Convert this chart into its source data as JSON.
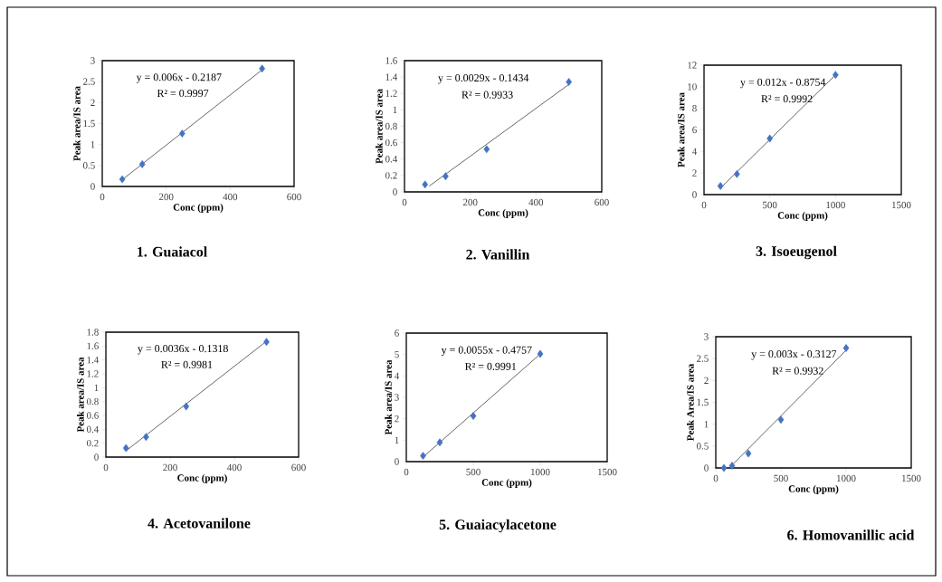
{
  "chart_data": [
    {
      "type": "scatter",
      "title": "1. Guaiacol",
      "xlabel": "Conc (ppm)",
      "ylabel": "Peak area/IS area",
      "annotations": [
        "y = 0.006x - 0.2187",
        "R² = 0.9997"
      ],
      "xlim": [
        0,
        600
      ],
      "xticks": [
        0,
        200,
        400,
        600
      ],
      "ylim": [
        0,
        3
      ],
      "yticks": [
        0,
        0.5,
        1,
        1.5,
        2,
        2.5,
        3
      ],
      "series": [
        {
          "color": "#4472c4",
          "marker": "diamond",
          "x": [
            62.5,
            125,
            250,
            500
          ],
          "values": [
            0.17,
            0.53,
            1.26,
            2.81
          ]
        },
        {
          "type": "line",
          "color": "#404040",
          "line_style": "solid",
          "x": [
            62.5,
            500
          ],
          "values": [
            0.16,
            2.78
          ]
        }
      ]
    },
    {
      "type": "scatter",
      "title": "2. Vanillin",
      "xlabel": "Conc (ppm)",
      "ylabel": "Peak area/IS area",
      "annotations": [
        "y = 0.0029x - 0.1434",
        "R² = 0.9933"
      ],
      "xlim": [
        0,
        600
      ],
      "xticks": [
        0,
        200,
        400,
        600
      ],
      "ylim": [
        0,
        1.6
      ],
      "yticks": [
        0,
        0.2,
        0.4,
        0.6,
        0.8,
        1,
        1.2,
        1.4,
        1.6
      ],
      "series": [
        {
          "color": "#4472c4",
          "marker": "diamond",
          "x": [
            62.5,
            125,
            250,
            500
          ],
          "values": [
            0.09,
            0.19,
            0.52,
            1.34
          ]
        },
        {
          "type": "line",
          "color": "#404040",
          "line_style": "solid",
          "x": [
            75,
            500
          ],
          "values": [
            0.07,
            1.31
          ]
        }
      ]
    },
    {
      "type": "scatter",
      "title": "3. Isoeugenol",
      "xlabel": "Conc (ppm)",
      "ylabel": "Peak area/IS area",
      "annotations": [
        "y = 0.012x - 0.8754",
        "R² = 0.9992"
      ],
      "xlim": [
        0,
        1500
      ],
      "xticks": [
        0,
        500,
        1000,
        1500
      ],
      "ylim": [
        0,
        12
      ],
      "yticks": [
        0,
        2,
        4,
        6,
        8,
        10,
        12
      ],
      "series": [
        {
          "color": "#4472c4",
          "marker": "diamond",
          "x": [
            125,
            250,
            500,
            1000
          ],
          "values": [
            0.8,
            1.9,
            5.2,
            11.1
          ]
        },
        {
          "type": "line",
          "color": "#404040",
          "line_style": "solid",
          "x": [
            125,
            1000
          ],
          "values": [
            0.6,
            11.1
          ]
        }
      ]
    },
    {
      "type": "scatter",
      "title": "4. Acetovanilone",
      "xlabel": "Conc (ppm)",
      "ylabel": "Peak area/IS area",
      "annotations": [
        "y = 0.0036x - 0.1318",
        "R² = 0.9981"
      ],
      "xlim": [
        0,
        600
      ],
      "xticks": [
        0,
        200,
        400,
        600
      ],
      "ylim": [
        0,
        1.8
      ],
      "yticks": [
        0,
        0.2,
        0.4,
        0.6,
        0.8,
        1,
        1.2,
        1.4,
        1.6,
        1.8
      ],
      "series": [
        {
          "color": "#4472c4",
          "marker": "diamond",
          "x": [
            62.5,
            125,
            250,
            500
          ],
          "values": [
            0.13,
            0.29,
            0.73,
            1.66
          ]
        },
        {
          "type": "line",
          "color": "#404040",
          "line_style": "solid",
          "x": [
            62.5,
            500
          ],
          "values": [
            0.09,
            1.67
          ]
        }
      ]
    },
    {
      "type": "scatter",
      "title": "5. Guaiacylacetone",
      "xlabel": "Conc (ppm)",
      "ylabel": "Peak area/IS area",
      "annotations": [
        "y = 0.0055x - 0.4757",
        "R² = 0.9991"
      ],
      "xlim": [
        0,
        1500
      ],
      "xticks": [
        0,
        500,
        1000,
        1500
      ],
      "ylim": [
        0,
        6
      ],
      "yticks": [
        0,
        1,
        2,
        3,
        4,
        5,
        6
      ],
      "series": [
        {
          "color": "#4472c4",
          "marker": "diamond",
          "x": [
            125,
            250,
            500,
            1000
          ],
          "values": [
            0.27,
            0.9,
            2.13,
            5.03
          ]
        },
        {
          "type": "line",
          "color": "#404040",
          "line_style": "solid",
          "x": [
            125,
            1000
          ],
          "values": [
            0.21,
            5.02
          ]
        }
      ]
    },
    {
      "type": "scatter",
      "title": "6. Homovanillic  acid",
      "xlabel": "Conc (ppm)",
      "ylabel": "Peak Area/IS area",
      "annotations": [
        "y = 0.003x - 0.3127",
        "R² = 0.9932"
      ],
      "xlim": [
        0,
        1500
      ],
      "xticks": [
        0,
        500,
        1000,
        1500
      ],
      "ylim": [
        0,
        3
      ],
      "yticks": [
        0,
        0.5,
        1,
        1.5,
        2,
        2.5,
        3
      ],
      "series": [
        {
          "color": "#4472c4",
          "marker": "diamond",
          "x": [
            62.5,
            125,
            250,
            500,
            1000
          ],
          "values": [
            0.0,
            0.05,
            0.33,
            1.1,
            2.74
          ]
        },
        {
          "type": "line",
          "color": "#404040",
          "line_style": "solid",
          "x": [
            110,
            1000
          ],
          "values": [
            0.02,
            2.69
          ]
        }
      ]
    }
  ]
}
